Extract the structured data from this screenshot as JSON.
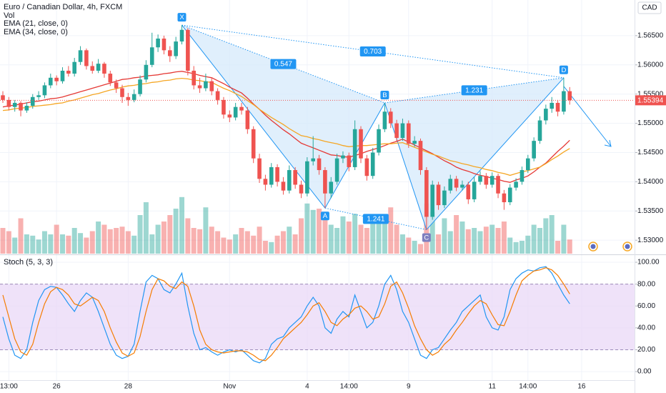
{
  "chart_data": {
    "type": "candlestick",
    "title": "Euro / Canadian Dollar, 4h, FXCM",
    "currency": "CAD",
    "categories": [
      null,
      "13:00",
      null,
      null,
      null,
      null,
      null,
      null,
      null,
      "26",
      null,
      null,
      null,
      null,
      null,
      null,
      null,
      null,
      null,
      null,
      null,
      "28",
      null,
      null,
      null,
      null,
      null,
      null,
      null,
      null,
      null,
      null,
      null,
      null,
      null,
      null,
      null,
      null,
      "Nov",
      null,
      null,
      null,
      null,
      null,
      null,
      null,
      null,
      null,
      null,
      null,
      null,
      "4",
      null,
      null,
      null,
      null,
      null,
      null,
      "14:00",
      null,
      null,
      null,
      null,
      null,
      null,
      null,
      null,
      null,
      "9",
      null,
      null,
      null,
      null,
      null,
      null,
      null,
      null,
      null,
      null,
      null,
      null,
      null,
      "11",
      null,
      null,
      null,
      null,
      null,
      "14:00",
      null,
      null,
      null,
      null,
      null,
      null,
      null,
      null,
      "16"
    ],
    "ohlc": [
      [
        1.5548,
        1.5555,
        1.5535,
        1.554
      ],
      [
        1.554,
        1.5545,
        1.5522,
        1.5528
      ],
      [
        1.5528,
        1.554,
        1.552,
        1.5535
      ],
      [
        1.5535,
        1.5538,
        1.5512,
        1.5522
      ],
      [
        1.5522,
        1.5536,
        1.5518,
        1.553
      ],
      [
        1.553,
        1.555,
        1.5525,
        1.5545
      ],
      [
        1.5545,
        1.5555,
        1.554,
        1.5548
      ],
      [
        1.5548,
        1.557,
        1.5543,
        1.5565
      ],
      [
        1.5565,
        1.5585,
        1.556,
        1.5578
      ],
      [
        1.5578,
        1.5582,
        1.5565,
        1.5572
      ],
      [
        1.5572,
        1.5596,
        1.5568,
        1.559
      ],
      [
        1.559,
        1.5598,
        1.558,
        1.5585
      ],
      [
        1.5585,
        1.5612,
        1.558,
        1.5605
      ],
      [
        1.5605,
        1.5632,
        1.56,
        1.5625
      ],
      [
        1.5625,
        1.5628,
        1.5592,
        1.5598
      ],
      [
        1.5598,
        1.5606,
        1.5585,
        1.559
      ],
      [
        1.559,
        1.561,
        1.5586,
        1.5602
      ],
      [
        1.5602,
        1.5605,
        1.5578,
        1.5585
      ],
      [
        1.5585,
        1.559,
        1.5564,
        1.557
      ],
      [
        1.557,
        1.5575,
        1.5552,
        1.556
      ],
      [
        1.556,
        1.5566,
        1.5535,
        1.5545
      ],
      [
        1.5545,
        1.5552,
        1.553,
        1.554
      ],
      [
        1.554,
        1.5558,
        1.5536,
        1.555
      ],
      [
        1.555,
        1.5582,
        1.5546,
        1.5575
      ],
      [
        1.5575,
        1.5608,
        1.557,
        1.56
      ],
      [
        1.56,
        1.5655,
        1.5596,
        1.563
      ],
      [
        1.563,
        1.5652,
        1.5622,
        1.5645
      ],
      [
        1.5645,
        1.565,
        1.5618,
        1.5625
      ],
      [
        1.5625,
        1.5632,
        1.5605,
        1.5615
      ],
      [
        1.5615,
        1.5648,
        1.561,
        1.564
      ],
      [
        1.564,
        1.5668,
        1.5635,
        1.566
      ],
      [
        1.566,
        1.5663,
        1.5582,
        1.559
      ],
      [
        1.559,
        1.5598,
        1.5558,
        1.5565
      ],
      [
        1.5565,
        1.5578,
        1.5552,
        1.556
      ],
      [
        1.556,
        1.5585,
        1.5555,
        1.5572
      ],
      [
        1.5572,
        1.5578,
        1.5548,
        1.5555
      ],
      [
        1.5555,
        1.556,
        1.5532,
        1.554
      ],
      [
        1.554,
        1.5545,
        1.5508,
        1.5515
      ],
      [
        1.5515,
        1.5522,
        1.5502,
        1.551
      ],
      [
        1.551,
        1.5535,
        1.5505,
        1.5528
      ],
      [
        1.5528,
        1.5535,
        1.5515,
        1.5522
      ],
      [
        1.5522,
        1.5528,
        1.5482,
        1.549
      ],
      [
        1.549,
        1.5495,
        1.5432,
        1.544
      ],
      [
        1.544,
        1.5448,
        1.5398,
        1.5405
      ],
      [
        1.5405,
        1.5412,
        1.5385,
        1.5395
      ],
      [
        1.5395,
        1.5432,
        1.539,
        1.5425
      ],
      [
        1.5425,
        1.543,
        1.5392,
        1.54
      ],
      [
        1.54,
        1.5408,
        1.5378,
        1.5385
      ],
      [
        1.5385,
        1.5428,
        1.538,
        1.542
      ],
      [
        1.542,
        1.5425,
        1.5388,
        1.5395
      ],
      [
        1.5395,
        1.5402,
        1.5372,
        1.538
      ],
      [
        1.538,
        1.5442,
        1.5375,
        1.5435
      ],
      [
        1.5435,
        1.5478,
        1.5428,
        1.544
      ],
      [
        1.544,
        1.5446,
        1.5412,
        1.542
      ],
      [
        1.542,
        1.5425,
        1.5355,
        1.538
      ],
      [
        1.538,
        1.5408,
        1.5372,
        1.54
      ],
      [
        1.54,
        1.5448,
        1.5395,
        1.544
      ],
      [
        1.544,
        1.5452,
        1.5432,
        1.5445
      ],
      [
        1.5445,
        1.545,
        1.5418,
        1.5425
      ],
      [
        1.5425,
        1.5505,
        1.542,
        1.549
      ],
      [
        1.549,
        1.5495,
        1.5432,
        1.544
      ],
      [
        1.544,
        1.5446,
        1.5402,
        1.541
      ],
      [
        1.541,
        1.5458,
        1.5405,
        1.545
      ],
      [
        1.545,
        1.5498,
        1.5445,
        1.549
      ],
      [
        1.549,
        1.5535,
        1.5485,
        1.552
      ],
      [
        1.552,
        1.5526,
        1.5492,
        1.55
      ],
      [
        1.55,
        1.5506,
        1.5468,
        1.5475
      ],
      [
        1.5475,
        1.5508,
        1.547,
        1.55
      ],
      [
        1.55,
        1.5505,
        1.5458,
        1.5465
      ],
      [
        1.5465,
        1.5478,
        1.546,
        1.547
      ],
      [
        1.547,
        1.5474,
        1.5412,
        1.542
      ],
      [
        1.542,
        1.5425,
        1.5318,
        1.534
      ],
      [
        1.534,
        1.5402,
        1.5335,
        1.5395
      ],
      [
        1.5395,
        1.54,
        1.5352,
        1.536
      ],
      [
        1.536,
        1.5392,
        1.5355,
        1.5385
      ],
      [
        1.5385,
        1.5412,
        1.538,
        1.5405
      ],
      [
        1.5405,
        1.541,
        1.5384,
        1.539
      ],
      [
        1.539,
        1.5402,
        1.5385,
        1.5395
      ],
      [
        1.5395,
        1.54,
        1.5362,
        1.537
      ],
      [
        1.537,
        1.5408,
        1.5365,
        1.54
      ],
      [
        1.54,
        1.5418,
        1.5395,
        1.541
      ],
      [
        1.541,
        1.5415,
        1.5388,
        1.5395
      ],
      [
        1.5395,
        1.5416,
        1.539,
        1.541
      ],
      [
        1.541,
        1.5414,
        1.5372,
        1.538
      ],
      [
        1.538,
        1.5386,
        1.5352,
        1.5365
      ],
      [
        1.5365,
        1.5396,
        1.536,
        1.539
      ],
      [
        1.539,
        1.5406,
        1.5385,
        1.54
      ],
      [
        1.54,
        1.5426,
        1.5395,
        1.542
      ],
      [
        1.542,
        1.5446,
        1.5415,
        1.544
      ],
      [
        1.544,
        1.5476,
        1.5435,
        1.547
      ],
      [
        1.547,
        1.5512,
        1.5465,
        1.5505
      ],
      [
        1.5505,
        1.5532,
        1.5498,
        1.5525
      ],
      [
        1.5525,
        1.5545,
        1.5518,
        1.5535
      ],
      [
        1.5535,
        1.554,
        1.5512,
        1.552
      ],
      [
        1.552,
        1.5578,
        1.5515,
        1.5555
      ],
      [
        1.5555,
        1.5562,
        1.5532,
        1.55394
      ],
      null,
      null
    ],
    "up_color": "#26a69a",
    "down_color": "#ef5350",
    "ylim": [
      1.5277,
      1.5711
    ],
    "yticks": [
      {
        "value": 1.53,
        "label": "1.53000"
      },
      {
        "value": 1.535,
        "label": "1.53500"
      },
      {
        "value": 1.54,
        "label": "1.54000"
      },
      {
        "value": 1.545,
        "label": "1.54500"
      },
      {
        "value": 1.55,
        "label": "1.55000"
      },
      {
        "value": 1.555,
        "label": "1.55500"
      },
      {
        "value": 1.56,
        "label": "1.56000"
      },
      {
        "value": 1.565,
        "label": "1.56500"
      }
    ],
    "grid": true,
    "last_price": 1.55394,
    "volume": {
      "name": "Vol",
      "lim": [
        0,
        100
      ],
      "values": [
        40,
        35,
        25,
        55,
        30,
        28,
        22,
        35,
        30,
        45,
        30,
        28,
        40,
        32,
        25,
        35,
        50,
        45,
        38,
        40,
        42,
        35,
        28,
        60,
        80,
        30,
        45,
        50,
        60,
        70,
        88,
        55,
        40,
        38,
        72,
        42,
        35,
        25,
        22,
        30,
        40,
        35,
        28,
        42,
        20,
        18,
        28,
        35,
        42,
        30,
        55,
        78,
        68,
        70,
        65,
        45,
        40,
        58,
        50,
        62,
        45,
        40,
        50,
        58,
        55,
        72,
        45,
        30,
        25,
        20,
        15,
        78,
        65,
        30,
        55,
        35,
        60,
        50,
        38,
        40,
        35,
        42,
        45,
        40,
        50,
        25,
        18,
        20,
        28,
        45,
        40,
        55,
        60,
        20,
        45,
        22,
        null,
        null
      ]
    },
    "series": [
      {
        "name": "EMA (21, close, 0)",
        "color": "#e53935",
        "values": [
          1.5528,
          1.553,
          1.5531,
          1.5533,
          1.5535,
          1.5537,
          1.5538,
          1.554,
          1.5542,
          1.5543,
          1.5545,
          1.5548,
          1.5551,
          1.5554,
          1.5557,
          1.556,
          1.5563,
          1.5566,
          1.5569,
          1.5572,
          1.5575,
          1.5576,
          1.5578,
          1.5579,
          1.5581,
          1.5582,
          1.5583,
          1.5585,
          1.5586,
          1.5588,
          1.5589,
          1.5587,
          1.5585,
          1.5582,
          1.558,
          1.5578,
          1.5573,
          1.5568,
          1.5562,
          1.5557,
          1.5552,
          1.5543,
          1.5533,
          1.5524,
          1.5514,
          1.5505,
          1.5497,
          1.5489,
          1.5482,
          1.5474,
          1.5466,
          1.5462,
          1.5458,
          1.5454,
          1.545,
          1.5446,
          1.5445,
          1.5443,
          1.5442,
          1.5445,
          1.5448,
          1.5452,
          1.5455,
          1.5458,
          1.5462,
          1.5466,
          1.5469,
          1.5473,
          1.5468,
          1.5463,
          1.5458,
          1.5453,
          1.5448,
          1.5442,
          1.5436,
          1.5431,
          1.5425,
          1.5421,
          1.5418,
          1.5414,
          1.5411,
          1.5409,
          1.5406,
          1.5404,
          1.5401,
          1.5399,
          1.5403,
          1.5406,
          1.541,
          1.5417,
          1.5425,
          1.5432,
          1.5442,
          1.5452,
          1.5461,
          1.5471,
          null,
          null
        ]
      },
      {
        "name": "EMA (34, close, 0)",
        "color": "#f5a623",
        "values": [
          1.5522,
          1.5523,
          1.5525,
          1.5526,
          1.5527,
          1.5529,
          1.553,
          1.5531,
          1.5532,
          1.5534,
          1.5535,
          1.5538,
          1.554,
          1.5543,
          1.5546,
          1.5549,
          1.5551,
          1.5554,
          1.5557,
          1.5559,
          1.5562,
          1.5564,
          1.5565,
          1.5567,
          1.5568,
          1.557,
          1.5571,
          1.5573,
          1.5574,
          1.5576,
          1.5577,
          1.5576,
          1.5574,
          1.5573,
          1.5571,
          1.557,
          1.5565,
          1.556,
          1.5556,
          1.5551,
          1.5546,
          1.5539,
          1.5532,
          1.5524,
          1.5517,
          1.551,
          1.5504,
          1.5498,
          1.5491,
          1.5485,
          1.5479,
          1.5477,
          1.5474,
          1.5472,
          1.5469,
          1.5467,
          1.5465,
          1.5462,
          1.546,
          1.5461,
          1.5462,
          1.5462,
          1.5463,
          1.5464,
          1.5465,
          1.5465,
          1.5466,
          1.5467,
          1.5463,
          1.5459,
          1.5455,
          1.5451,
          1.5447,
          1.5444,
          1.544,
          1.5436,
          1.5434,
          1.5431,
          1.5429,
          1.5426,
          1.5424,
          1.5421,
          1.5419,
          1.5416,
          1.5414,
          1.5411,
          1.5414,
          1.5417,
          1.5419,
          1.5422,
          1.5425,
          1.5431,
          1.5438,
          1.5444,
          1.5451,
          1.5457,
          null,
          null
        ]
      }
    ],
    "pattern": {
      "color": "#2196f3",
      "fill": "#d6e9fb",
      "points": [
        {
          "label": "X",
          "index": 30,
          "price": 1.5668
        },
        {
          "label": "A",
          "index": 54,
          "price": 1.5355
        },
        {
          "label": "B",
          "index": 64,
          "price": 1.5535
        },
        {
          "label": "C",
          "index": 71,
          "price": 1.5318
        },
        {
          "label": "D",
          "index": 94,
          "price": 1.5578
        }
      ],
      "ratios": [
        0.547,
        0.703,
        1.231,
        1.241
      ]
    },
    "stoch": {
      "name": "Stoch (5, 3, 3)",
      "ylim": [
        -7.8,
        105.9
      ],
      "band": [
        20,
        80
      ],
      "band_color": "#e8d5f7",
      "yticks": [
        {
          "value": 0,
          "label": "0.00"
        },
        {
          "value": 20,
          "label": "20.00"
        },
        {
          "value": 40,
          "label": "40.00"
        },
        {
          "value": 60,
          "label": "60.00"
        },
        {
          "value": 80,
          "label": "80.00"
        },
        {
          "value": 100,
          "label": "100.00"
        }
      ],
      "series": [
        {
          "color": "#2196f3",
          "values": [
            50,
            30,
            15,
            12,
            20,
            45,
            65,
            75,
            78,
            77,
            70,
            62,
            55,
            65,
            72,
            68,
            55,
            40,
            25,
            15,
            12,
            14,
            25,
            55,
            82,
            88,
            85,
            75,
            72,
            80,
            90,
            60,
            35,
            20,
            22,
            18,
            15,
            18,
            20,
            18,
            20,
            15,
            10,
            8,
            12,
            25,
            30,
            32,
            40,
            45,
            50,
            60,
            68,
            60,
            40,
            35,
            48,
            55,
            50,
            70,
            55,
            40,
            45,
            60,
            80,
            88,
            75,
            55,
            45,
            30,
            15,
            12,
            20,
            22,
            30,
            38,
            45,
            55,
            60,
            65,
            70,
            50,
            40,
            38,
            50,
            75,
            85,
            90,
            93,
            92,
            95,
            96,
            90,
            80,
            70,
            62,
            null,
            null
          ]
        },
        {
          "color": "#f57c00",
          "values": [
            70,
            50,
            30,
            18,
            15,
            25,
            45,
            62,
            73,
            77,
            75,
            70,
            62,
            60,
            64,
            68,
            65,
            55,
            40,
            27,
            17,
            14,
            17,
            32,
            55,
            75,
            85,
            83,
            78,
            76,
            82,
            78,
            60,
            38,
            25,
            20,
            18,
            17,
            18,
            19,
            19,
            18,
            15,
            11,
            10,
            15,
            22,
            30,
            35,
            40,
            45,
            52,
            60,
            63,
            55,
            45,
            42,
            48,
            52,
            58,
            60,
            55,
            48,
            50,
            62,
            78,
            82,
            72,
            58,
            42,
            30,
            20,
            15,
            18,
            25,
            30,
            38,
            45,
            53,
            60,
            65,
            62,
            52,
            43,
            42,
            55,
            70,
            83,
            88,
            92,
            93,
            95,
            93,
            88,
            80,
            71,
            null,
            null
          ]
        }
      ]
    }
  }
}
